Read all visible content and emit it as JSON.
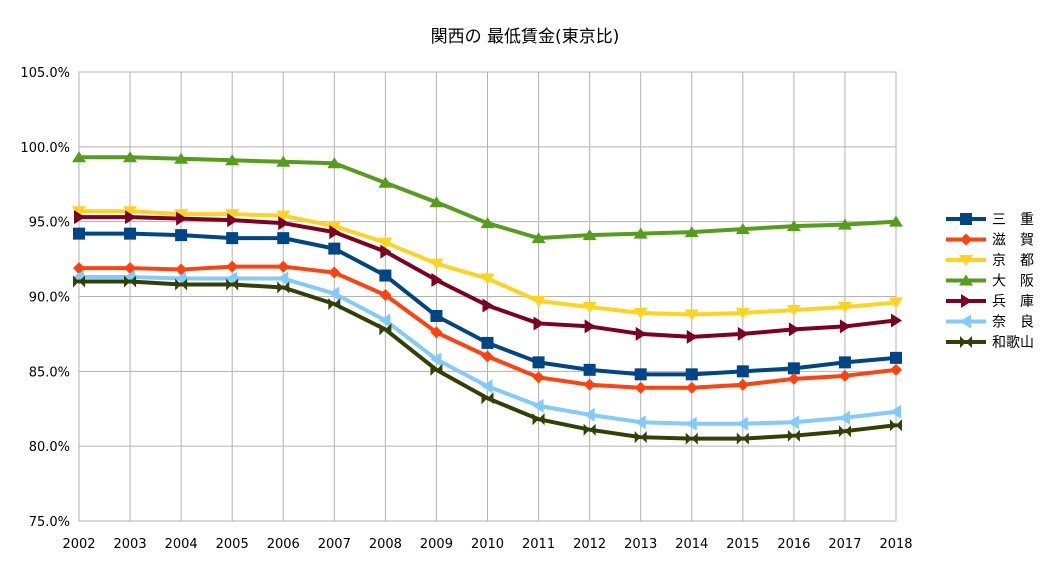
{
  "chart_data": {
    "type": "line",
    "title": "関西の 最低賃金(東京比)",
    "xlabel": "",
    "ylabel": "",
    "x": [
      "2002",
      "2003",
      "2004",
      "2005",
      "2006",
      "2007",
      "2008",
      "2009",
      "2010",
      "2011",
      "2012",
      "2013",
      "2014",
      "2015",
      "2016",
      "2017",
      "2018"
    ],
    "ylim": [
      75,
      105
    ],
    "yticks": [
      "75.0%",
      "80.0%",
      "85.0%",
      "90.0%",
      "95.0%",
      "100.0%",
      "105.0%"
    ],
    "grid": true,
    "legend_position": "right",
    "series": [
      {
        "name": "三　重",
        "color": "#004586",
        "marker": "square",
        "values": [
          94.2,
          94.2,
          94.1,
          93.9,
          93.9,
          93.2,
          91.4,
          88.7,
          86.9,
          85.6,
          85.1,
          84.8,
          84.8,
          85.0,
          85.2,
          85.6,
          85.9
        ]
      },
      {
        "name": "滋　賀",
        "color": "#ff420e",
        "marker": "diamond",
        "values": [
          91.9,
          91.9,
          91.8,
          92.0,
          92.0,
          91.6,
          90.1,
          87.6,
          86.0,
          84.6,
          84.1,
          83.9,
          83.9,
          84.1,
          84.5,
          84.7,
          85.1
        ]
      },
      {
        "name": "京　都",
        "color": "#ffd320",
        "marker": "triangle-down",
        "values": [
          95.7,
          95.7,
          95.5,
          95.5,
          95.4,
          94.7,
          93.6,
          92.2,
          91.2,
          89.7,
          89.3,
          88.9,
          88.8,
          88.9,
          89.1,
          89.3,
          89.6
        ]
      },
      {
        "name": "大　阪",
        "color": "#579d1c",
        "marker": "triangle-up",
        "values": [
          99.3,
          99.3,
          99.2,
          99.1,
          99.0,
          98.9,
          97.6,
          96.3,
          94.9,
          93.9,
          94.1,
          94.2,
          94.3,
          94.5,
          94.7,
          94.8,
          95.0
        ]
      },
      {
        "name": "兵　庫",
        "color": "#7e0021",
        "marker": "triangle-right",
        "values": [
          95.3,
          95.3,
          95.2,
          95.1,
          94.9,
          94.3,
          93.0,
          91.1,
          89.4,
          88.2,
          88.0,
          87.5,
          87.3,
          87.5,
          87.8,
          88.0,
          88.4
        ]
      },
      {
        "name": "奈　良",
        "color": "#83caff",
        "marker": "triangle-left",
        "values": [
          91.3,
          91.3,
          91.2,
          91.2,
          91.2,
          90.2,
          88.4,
          85.8,
          84.0,
          82.7,
          82.1,
          81.6,
          81.5,
          81.5,
          81.6,
          81.9,
          82.3
        ]
      },
      {
        "name": "和歌山",
        "color": "#314004",
        "marker": "bowtie",
        "values": [
          91.0,
          91.0,
          90.8,
          90.8,
          90.6,
          89.5,
          87.8,
          85.1,
          83.2,
          81.8,
          81.1,
          80.6,
          80.5,
          80.5,
          80.7,
          81.0,
          81.4
        ]
      }
    ]
  }
}
